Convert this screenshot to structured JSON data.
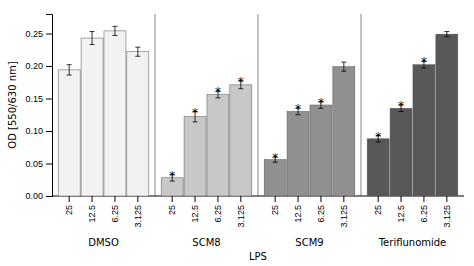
{
  "chart_data": {
    "type": "bar",
    "ylabel": "OD [550/630 nm]",
    "categories": [
      "25",
      "12.5",
      "6.25",
      "3.125"
    ],
    "series": [
      {
        "name": "DMSO",
        "color": "#f2f2f2",
        "values": [
          0.194,
          0.243,
          0.254,
          0.222
        ],
        "errors": [
          0.008,
          0.01,
          0.007,
          0.007
        ],
        "significance": [
          false,
          false,
          false,
          false
        ]
      },
      {
        "name": "SCM8",
        "color": "#c8c8c8",
        "values": [
          0.028,
          0.122,
          0.156,
          0.171
        ],
        "errors": [
          0.005,
          0.008,
          0.005,
          0.006
        ],
        "significance": [
          true,
          true,
          true,
          true
        ]
      },
      {
        "name": "SCM9",
        "color": "#909090",
        "values": [
          0.056,
          0.13,
          0.14,
          0.199
        ],
        "errors": [
          0.004,
          0.005,
          0.005,
          0.007
        ],
        "significance": [
          true,
          true,
          true,
          false
        ]
      },
      {
        "name": "Teriflunomide",
        "color": "#585858",
        "values": [
          0.088,
          0.135,
          0.202,
          0.249
        ],
        "errors": [
          0.005,
          0.005,
          0.005,
          0.004
        ],
        "significance": [
          true,
          true,
          true,
          false
        ]
      }
    ],
    "significance_label": "*",
    "annotations": [
      {
        "text": "LPS",
        "groups": [
          "SCM8",
          "SCM9"
        ]
      }
    ],
    "ylim": [
      0.0,
      0.28
    ],
    "yticks": [
      {
        "value": 0.0,
        "label": "0.00"
      },
      0.05,
      {
        "value": 0.1,
        "label": "0.10"
      },
      0.15,
      {
        "value": 0.2,
        "label": "0.20"
      },
      0.25
    ],
    "grid": false
  }
}
